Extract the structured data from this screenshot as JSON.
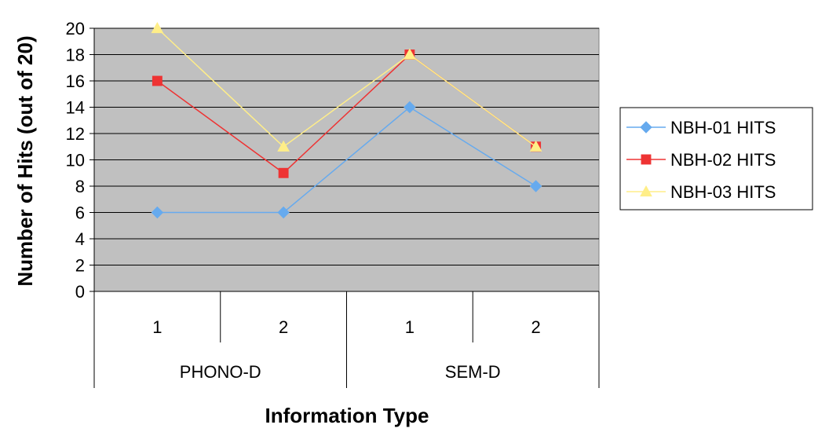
{
  "chart_data": {
    "type": "line",
    "xlabel": "Information Type",
    "ylabel": "Number of Hits (out of 20)",
    "ylim": [
      0,
      20
    ],
    "y_ticks": [
      "0",
      "2",
      "4",
      "6",
      "8",
      "10",
      "12",
      "14",
      "16",
      "18",
      "20"
    ],
    "categories": [
      {
        "group": "PHONO-D",
        "label": "1"
      },
      {
        "group": "PHONO-D",
        "label": "2"
      },
      {
        "group": "SEM-D",
        "label": "1"
      },
      {
        "group": "SEM-D",
        "label": "2"
      }
    ],
    "groups": [
      "PHONO-D",
      "SEM-D"
    ],
    "series": [
      {
        "name": "NBH-01 HITS",
        "values": [
          6,
          6,
          14,
          8
        ],
        "color": "#66AAEE",
        "marker": "diamond"
      },
      {
        "name": "NBH-02 HITS",
        "values": [
          16,
          9,
          18,
          11
        ],
        "color": "#EE3333",
        "marker": "square"
      },
      {
        "name": "NBH-03 HITS",
        "values": [
          20,
          11,
          18,
          11
        ],
        "color": "#FFEE88",
        "marker": "triangle"
      }
    ],
    "grid": true,
    "plot_background": "#C0C0C0",
    "legend_position": "right"
  }
}
